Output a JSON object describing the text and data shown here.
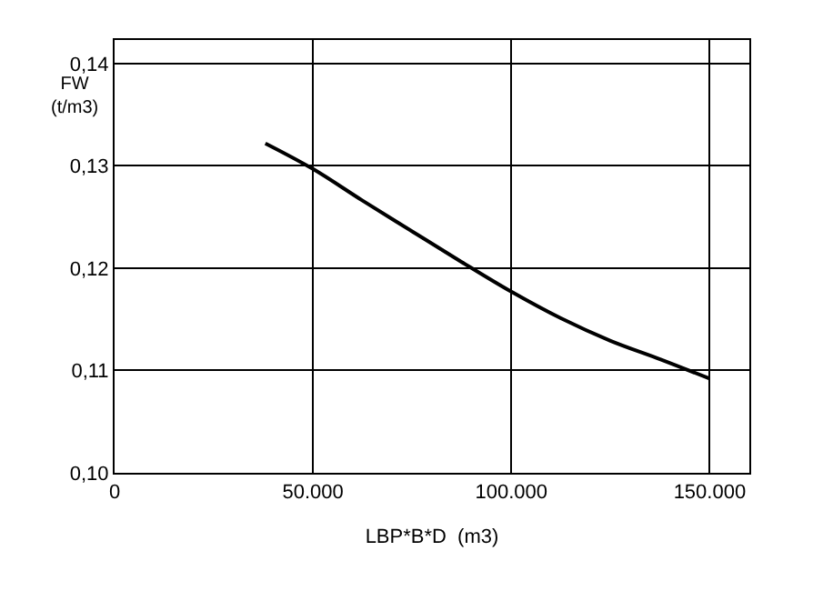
{
  "chart_data": {
    "type": "line",
    "xlabel": "LBP*B*D  (m3)",
    "ylabel": "FW\n(t/m3)",
    "x": [
      38000,
      50000,
      62500,
      75000,
      87500,
      100000,
      112500,
      125000,
      137500,
      150000
    ],
    "series": [
      {
        "color": "#000000",
        "values": [
          0.1322,
          0.1297,
          0.1266,
          0.1236,
          0.1206,
          0.1177,
          0.1151,
          0.1129,
          0.1111,
          0.1092
        ]
      }
    ],
    "xlim": [
      0,
      160000
    ],
    "xticks": [
      {
        "value": 0,
        "label": "0"
      },
      {
        "value": 50000,
        "label": "50.000"
      },
      {
        "value": 100000,
        "label": "100.000"
      },
      {
        "value": 150000,
        "label": "150.000"
      }
    ],
    "ylim": [
      0.1,
      0.1423
    ],
    "yticks": [
      {
        "value": 0.1,
        "label": "0,10"
      },
      {
        "value": 0.11,
        "label": "0,11"
      },
      {
        "value": 0.12,
        "label": "0,12"
      },
      {
        "value": 0.13,
        "label": "0,13"
      },
      {
        "value": 0.14,
        "label": "0,14"
      }
    ],
    "grid": true,
    "legend": false,
    "marker": "none",
    "line_style": "solid"
  }
}
